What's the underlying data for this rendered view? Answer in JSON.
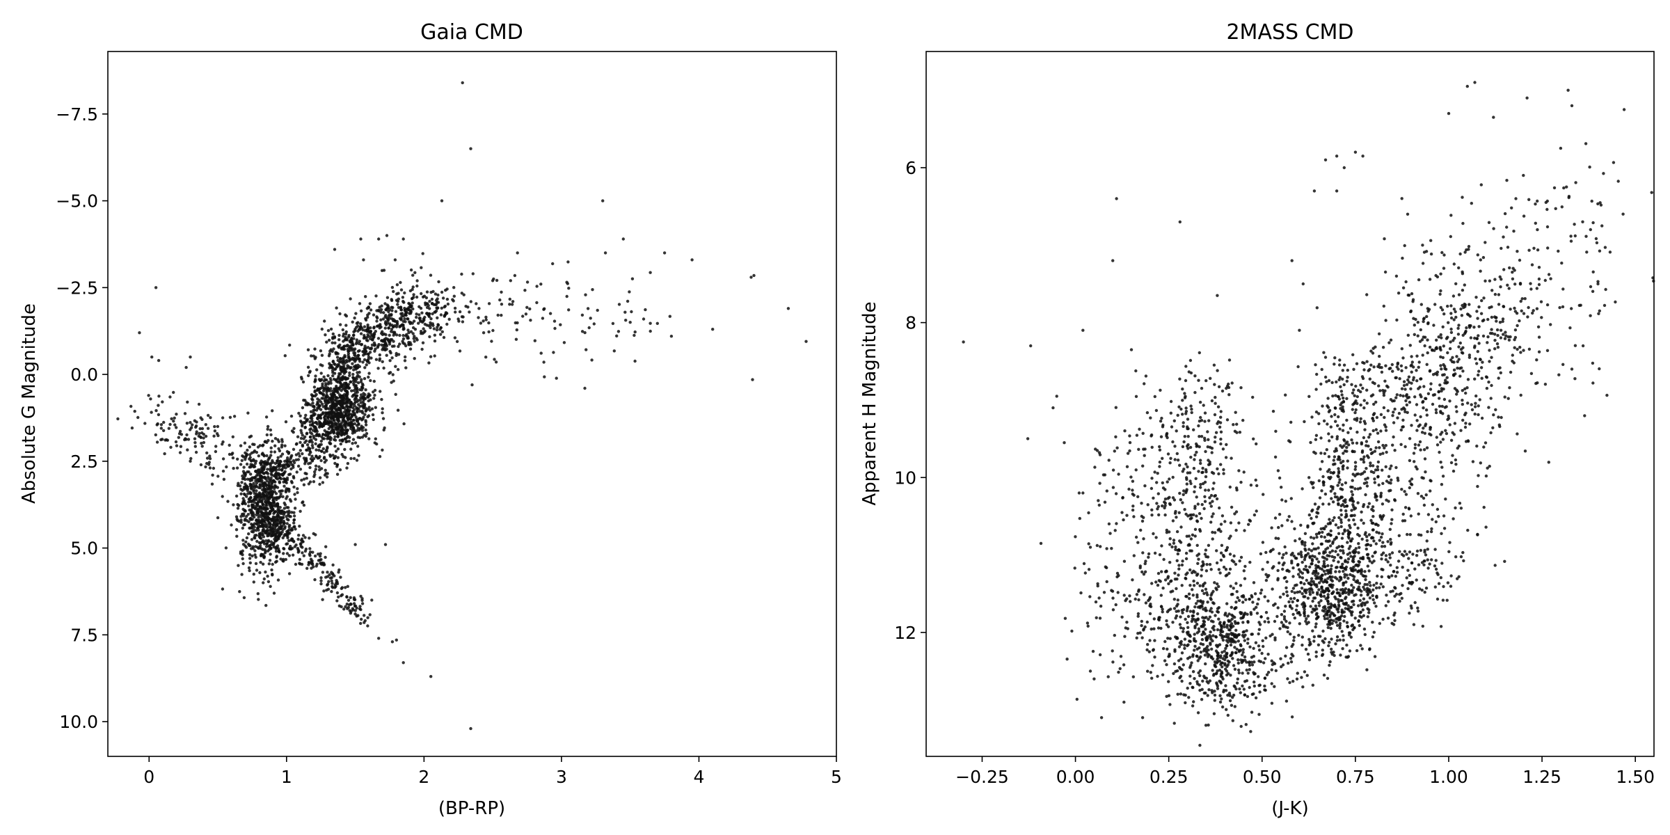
{
  "chart_data": [
    {
      "type": "scatter",
      "title": "Gaia CMD",
      "xlabel": "(BP-RP)",
      "ylabel": "Absolute G Magnitude",
      "xlim": [
        -0.3,
        5.0
      ],
      "ylim": [
        11.0,
        -9.3
      ],
      "y_inverted": true,
      "xticks": [
        0,
        1,
        2,
        3,
        4,
        5
      ],
      "xtick_labels": [
        "0",
        "1",
        "2",
        "3",
        "4",
        "5"
      ],
      "yticks": [
        -7.5,
        -5.0,
        -2.5,
        0.0,
        2.5,
        5.0,
        7.5,
        10.0
      ],
      "ytick_labels": [
        "−7.5",
        "−5.0",
        "−2.5",
        "0.0",
        "2.5",
        "5.0",
        "7.5",
        "10.0"
      ],
      "marker_color": "#111111",
      "features": {
        "main_sequence_turnoff": {
          "x": 0.85,
          "y": 3.8,
          "sx": 0.1,
          "sy": 0.9,
          "n": 900
        },
        "lower_main_sequence": {
          "from": [
            0.9,
            4.0
          ],
          "to": [
            1.55,
            7.0
          ],
          "width": 0.06,
          "n": 220
        },
        "upper_main_sequence": {
          "from": [
            0.0,
            1.0
          ],
          "to": [
            0.85,
            3.0
          ],
          "width": 0.12,
          "n": 180
        },
        "subgiant_branch": {
          "from": [
            0.95,
            3.0
          ],
          "to": [
            1.25,
            1.2
          ],
          "width": 0.06,
          "n": 120
        },
        "red_clump": {
          "x": 1.4,
          "y": 1.0,
          "sx": 0.12,
          "sy": 0.6,
          "n": 700
        },
        "red_giant_branch": {
          "from": [
            1.2,
            3.0
          ],
          "to": [
            1.45,
            -0.8
          ],
          "width": 0.08,
          "n": 300
        },
        "upper_giant_branch": {
          "from": [
            1.4,
            -0.6
          ],
          "to": [
            2.1,
            -2.0
          ],
          "width": 0.15,
          "n": 600
        },
        "agb_tail": {
          "from": [
            2.0,
            -2.0
          ],
          "to": [
            3.6,
            -1.5
          ],
          "width": 0.25,
          "n": 120
        }
      },
      "points": [
        [
          -0.07,
          -1.2
        ],
        [
          0.05,
          -2.5
        ],
        [
          0.02,
          -0.5
        ],
        [
          0.07,
          -0.4
        ],
        [
          2.28,
          -8.4
        ],
        [
          2.34,
          -6.5
        ],
        [
          2.13,
          -5.0
        ],
        [
          3.3,
          -5.0
        ],
        [
          3.45,
          -3.9
        ],
        [
          3.32,
          -3.5
        ],
        [
          3.75,
          -3.5
        ],
        [
          3.95,
          -3.3
        ],
        [
          4.38,
          -2.8
        ],
        [
          4.4,
          -2.85
        ],
        [
          4.65,
          -1.9
        ],
        [
          4.78,
          -0.95
        ],
        [
          4.39,
          0.15
        ],
        [
          4.1,
          -1.3
        ],
        [
          3.8,
          -1.1
        ],
        [
          3.5,
          -1.5
        ],
        [
          3.17,
          0.4
        ],
        [
          2.35,
          0.3
        ],
        [
          2.68,
          -3.5
        ],
        [
          2.5,
          -2.7
        ],
        [
          2.63,
          -2.7
        ],
        [
          2.85,
          -2.6
        ],
        [
          1.62,
          6.5
        ],
        [
          1.46,
          6.8
        ],
        [
          1.5,
          6.9
        ],
        [
          1.67,
          7.6
        ],
        [
          1.77,
          7.7
        ],
        [
          1.8,
          7.65
        ],
        [
          1.85,
          8.3
        ],
        [
          2.05,
          8.7
        ],
        [
          2.34,
          10.2
        ],
        [
          1.72,
          4.9
        ],
        [
          0.83,
          6.0
        ],
        [
          0.91,
          6.3
        ],
        [
          1.85,
          -3.9
        ],
        [
          1.73,
          -4.0
        ],
        [
          1.67,
          -3.9
        ],
        [
          1.54,
          -3.9
        ],
        [
          1.35,
          -3.6
        ],
        [
          1.79,
          -3.3
        ],
        [
          1.56,
          -3.3
        ],
        [
          0.27,
          -0.2
        ],
        [
          0.3,
          -0.5
        ],
        [
          0.95,
          2.2
        ],
        [
          1.5,
          4.9
        ],
        [
          0.3,
          2.5
        ]
      ]
    },
    {
      "type": "scatter",
      "title": "2MASS CMD",
      "xlabel": "(J-K)",
      "ylabel": "Apparent H Magnitude",
      "xlim": [
        -0.4,
        1.55
      ],
      "ylim": [
        13.6,
        4.5
      ],
      "y_inverted": true,
      "xticks": [
        -0.25,
        0.0,
        0.25,
        0.5,
        0.75,
        1.0,
        1.25,
        1.5
      ],
      "xtick_labels": [
        "−0.25",
        "0.00",
        "0.25",
        "0.50",
        "0.75",
        "1.00",
        "1.25",
        "1.50"
      ],
      "yticks": [
        6,
        8,
        10,
        12
      ],
      "ytick_labels": [
        "6",
        "8",
        "10",
        "12"
      ],
      "marker_color": "#111111",
      "features": {
        "dwarf_clump": {
          "x": 0.37,
          "y": 12.2,
          "sx": 0.08,
          "sy": 0.4,
          "n": 550
        },
        "dwarf_plume": {
          "from": [
            0.3,
            12.0
          ],
          "to": [
            0.32,
            8.8
          ],
          "width": 0.08,
          "n": 550
        },
        "dwarf_sparse": {
          "from": [
            0.12,
            12.5
          ],
          "to": [
            0.12,
            9.5
          ],
          "width": 0.08,
          "n": 120
        },
        "giant_clump": {
          "x": 0.68,
          "y": 11.4,
          "sx": 0.07,
          "sy": 0.4,
          "n": 500
        },
        "giant_branch": {
          "from": [
            0.65,
            11.5
          ],
          "to": [
            1.1,
            7.5
          ],
          "width": 0.12,
          "n": 900
        },
        "giant_upper": {
          "from": [
            0.95,
            9.5
          ],
          "to": [
            1.3,
            6.3
          ],
          "width": 0.15,
          "n": 250
        },
        "giant_vertical": {
          "from": [
            0.72,
            11.0
          ],
          "to": [
            0.72,
            8.5
          ],
          "width": 0.05,
          "n": 250
        },
        "diagonal_lower_edge": {
          "from": [
            0.45,
            12.8
          ],
          "to": [
            1.0,
            10.8
          ],
          "width": 0.08,
          "n": 250
        }
      },
      "points": [
        [
          -0.3,
          8.25
        ],
        [
          -0.12,
          8.3
        ],
        [
          0.11,
          6.4
        ],
        [
          0.1,
          7.2
        ],
        [
          0.28,
          6.7
        ],
        [
          0.38,
          7.65
        ],
        [
          0.15,
          8.35
        ],
        [
          0.02,
          8.1
        ],
        [
          1.05,
          4.95
        ],
        [
          1.07,
          4.9
        ],
        [
          1.0,
          5.3
        ],
        [
          1.12,
          5.35
        ],
        [
          1.21,
          5.1
        ],
        [
          1.32,
          5.0
        ],
        [
          1.33,
          5.2
        ],
        [
          1.47,
          5.25
        ],
        [
          1.3,
          5.75
        ],
        [
          0.67,
          5.9
        ],
        [
          0.7,
          5.85
        ],
        [
          0.72,
          6.0
        ],
        [
          0.75,
          5.8
        ],
        [
          0.77,
          5.85
        ],
        [
          0.64,
          6.3
        ],
        [
          0.7,
          6.3
        ],
        [
          1.2,
          6.1
        ],
        [
          1.18,
          6.4
        ],
        [
          1.38,
          6.8
        ],
        [
          1.4,
          7.5
        ],
        [
          1.36,
          8.3
        ],
        [
          1.33,
          8.6
        ],
        [
          -0.05,
          8.95
        ],
        [
          -0.06,
          9.1
        ],
        [
          -0.03,
          9.55
        ],
        [
          0.02,
          10.2
        ],
        [
          0.01,
          10.2
        ],
        [
          0.04,
          12.5
        ],
        [
          0.05,
          12.6
        ],
        [
          0.07,
          13.1
        ],
        [
          0.13,
          12.9
        ],
        [
          0.18,
          13.1
        ],
        [
          0.06,
          11.4
        ],
        [
          0.04,
          10.9
        ],
        [
          0.85,
          9.2
        ],
        [
          0.86,
          7.4
        ],
        [
          0.58,
          7.2
        ],
        [
          0.6,
          8.1
        ],
        [
          0.61,
          7.5
        ],
        [
          0.93,
          7.0
        ],
        [
          0.89,
          6.6
        ],
        [
          0.74,
          8.8
        ]
      ]
    }
  ]
}
